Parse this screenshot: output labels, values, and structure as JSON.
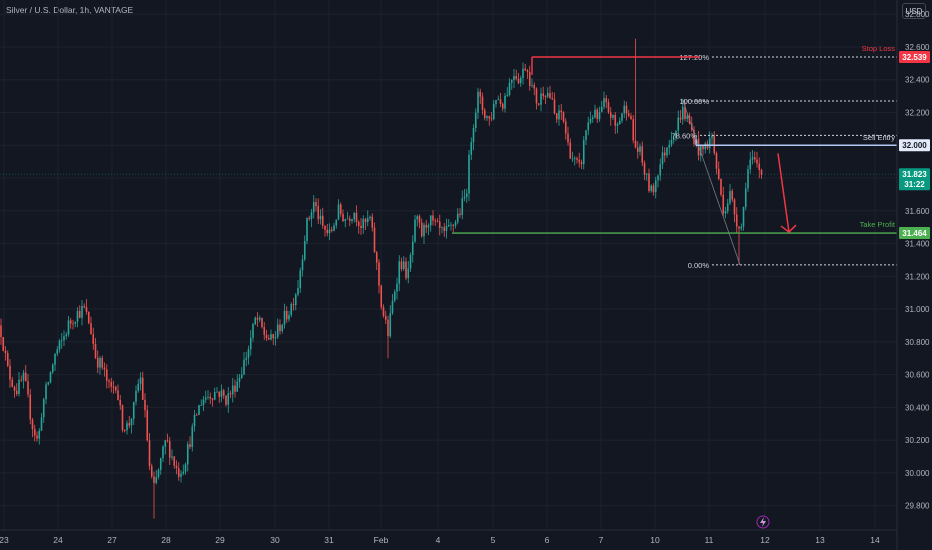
{
  "header": {
    "title": "Silver / U.S. Dollar, 1h, VANTAGE",
    "currency_button": "USD"
  },
  "colors": {
    "background": "#131722",
    "up": "#26a69a",
    "down": "#ef5350",
    "grid": "#1e222d",
    "stop_loss": "#f23645",
    "sell_entry": "#b2c9f7",
    "take_profit": "#4caf50",
    "fib": "#d1d4dc",
    "arrow": "#f23645",
    "current_price": "#089981"
  },
  "chart_data": {
    "type": "candlestick",
    "ylim": [
      29.7,
      32.85
    ],
    "y_ticks": [
      29.8,
      30.0,
      30.2,
      30.4,
      30.6,
      30.8,
      31.0,
      31.2,
      31.4,
      31.6,
      31.8,
      32.0,
      32.2,
      32.4,
      32.6,
      32.8
    ],
    "y_tick_labels": [
      "29.800",
      "30.000",
      "30.200",
      "30.400",
      "30.600",
      "30.800",
      "31.000",
      "31.200",
      "31.400",
      "31.600",
      "31.800",
      "32.000",
      "32.200",
      "32.400",
      "32.600",
      "32.800"
    ],
    "x_ticks": [
      "23",
      "24",
      "27",
      "28",
      "29",
      "30",
      "31",
      "Feb",
      "4",
      "5",
      "6",
      "7",
      "10",
      "11",
      "12",
      "13",
      "14"
    ],
    "price_path": [
      [
        0,
        30.9
      ],
      [
        8,
        30.62
      ],
      [
        16,
        30.5
      ],
      [
        24,
        30.58
      ],
      [
        32,
        30.3
      ],
      [
        38,
        30.18
      ],
      [
        42,
        30.4
      ],
      [
        48,
        30.55
      ],
      [
        55,
        30.72
      ],
      [
        62,
        30.8
      ],
      [
        68,
        30.9
      ],
      [
        76,
        30.97
      ],
      [
        84,
        31.0
      ],
      [
        90,
        30.9
      ],
      [
        96,
        30.7
      ],
      [
        102,
        30.65
      ],
      [
        110,
        30.5
      ],
      [
        116,
        30.55
      ],
      [
        122,
        30.3
      ],
      [
        128,
        30.28
      ],
      [
        134,
        30.4
      ],
      [
        140,
        30.6
      ],
      [
        146,
        30.3
      ],
      [
        150,
        30.0
      ],
      [
        154,
        29.9
      ],
      [
        160,
        30.05
      ],
      [
        166,
        30.2
      ],
      [
        172,
        30.1
      ],
      [
        178,
        30.0
      ],
      [
        184,
        30.05
      ],
      [
        190,
        30.2
      ],
      [
        196,
        30.35
      ],
      [
        202,
        30.45
      ],
      [
        210,
        30.48
      ],
      [
        218,
        30.5
      ],
      [
        226,
        30.45
      ],
      [
        232,
        30.5
      ],
      [
        240,
        30.6
      ],
      [
        248,
        30.75
      ],
      [
        256,
        30.95
      ],
      [
        264,
        30.85
      ],
      [
        272,
        30.8
      ],
      [
        280,
        30.9
      ],
      [
        290,
        31.0
      ],
      [
        298,
        31.15
      ],
      [
        306,
        31.5
      ],
      [
        314,
        31.65
      ],
      [
        322,
        31.5
      ],
      [
        330,
        31.45
      ],
      [
        338,
        31.6
      ],
      [
        346,
        31.55
      ],
      [
        354,
        31.6
      ],
      [
        362,
        31.5
      ],
      [
        370,
        31.55
      ],
      [
        376,
        31.3
      ],
      [
        382,
        31.0
      ],
      [
        388,
        30.85
      ],
      [
        394,
        31.1
      ],
      [
        400,
        31.3
      ],
      [
        408,
        31.2
      ],
      [
        416,
        31.55
      ],
      [
        422,
        31.45
      ],
      [
        428,
        31.55
      ],
      [
        436,
        31.5
      ],
      [
        444,
        31.45
      ],
      [
        452,
        31.5
      ],
      [
        460,
        31.6
      ],
      [
        466,
        31.7
      ],
      [
        472,
        32.1
      ],
      [
        478,
        32.3
      ],
      [
        484,
        32.2
      ],
      [
        490,
        32.15
      ],
      [
        496,
        32.3
      ],
      [
        502,
        32.25
      ],
      [
        508,
        32.35
      ],
      [
        514,
        32.45
      ],
      [
        520,
        32.4
      ],
      [
        526,
        32.5
      ],
      [
        532,
        32.35
      ],
      [
        538,
        32.25
      ],
      [
        544,
        32.35
      ],
      [
        550,
        32.3
      ],
      [
        556,
        32.15
      ],
      [
        562,
        32.2
      ],
      [
        568,
        32.0
      ],
      [
        574,
        31.9
      ],
      [
        580,
        31.85
      ],
      [
        586,
        32.1
      ],
      [
        592,
        32.2
      ],
      [
        598,
        32.15
      ],
      [
        604,
        32.25
      ],
      [
        610,
        32.2
      ],
      [
        616,
        32.1
      ],
      [
        622,
        32.2
      ],
      [
        628,
        32.25
      ],
      [
        634,
        32.0
      ],
      [
        640,
        31.95
      ],
      [
        646,
        31.8
      ],
      [
        652,
        31.7
      ],
      [
        658,
        31.85
      ],
      [
        664,
        31.95
      ],
      [
        670,
        32.05
      ],
      [
        676,
        32.1
      ],
      [
        682,
        32.22
      ],
      [
        688,
        32.15
      ],
      [
        694,
        32.05
      ],
      [
        700,
        31.95
      ],
      [
        706,
        32.0
      ],
      [
        712,
        32.05
      ],
      [
        718,
        31.8
      ],
      [
        724,
        31.6
      ],
      [
        730,
        31.7
      ],
      [
        736,
        31.55
      ],
      [
        742,
        31.5
      ],
      [
        746,
        31.8
      ],
      [
        750,
        31.9
      ],
      [
        756,
        31.88
      ],
      [
        762,
        31.823
      ]
    ],
    "peak_wick": {
      "x_index": 636,
      "high": 32.65
    },
    "low_wick": {
      "x_index": 740,
      "low": 31.27
    },
    "levels": {
      "stop_loss": {
        "label": "Stop Loss",
        "value": 32.539,
        "value_label": "32.539"
      },
      "sell_entry": {
        "label": "Sell Entry",
        "value": 32.0,
        "value_label": "32.000"
      },
      "take_profit": {
        "label": "Take Profit",
        "value": 31.464,
        "value_label": "31.464"
      }
    },
    "fib_levels": [
      {
        "label": "127.20%",
        "value": 32.539
      },
      {
        "label": "100.00%",
        "value": 32.27
      },
      {
        "label": "78.60%",
        "value": 32.06
      },
      {
        "label": "0.00%",
        "value": 31.27
      }
    ],
    "current_price": {
      "value": 31.823,
      "value_label": "31.823",
      "countdown": "31:22"
    },
    "projection_arrow": {
      "from": 31.95,
      "to": 31.47
    }
  }
}
